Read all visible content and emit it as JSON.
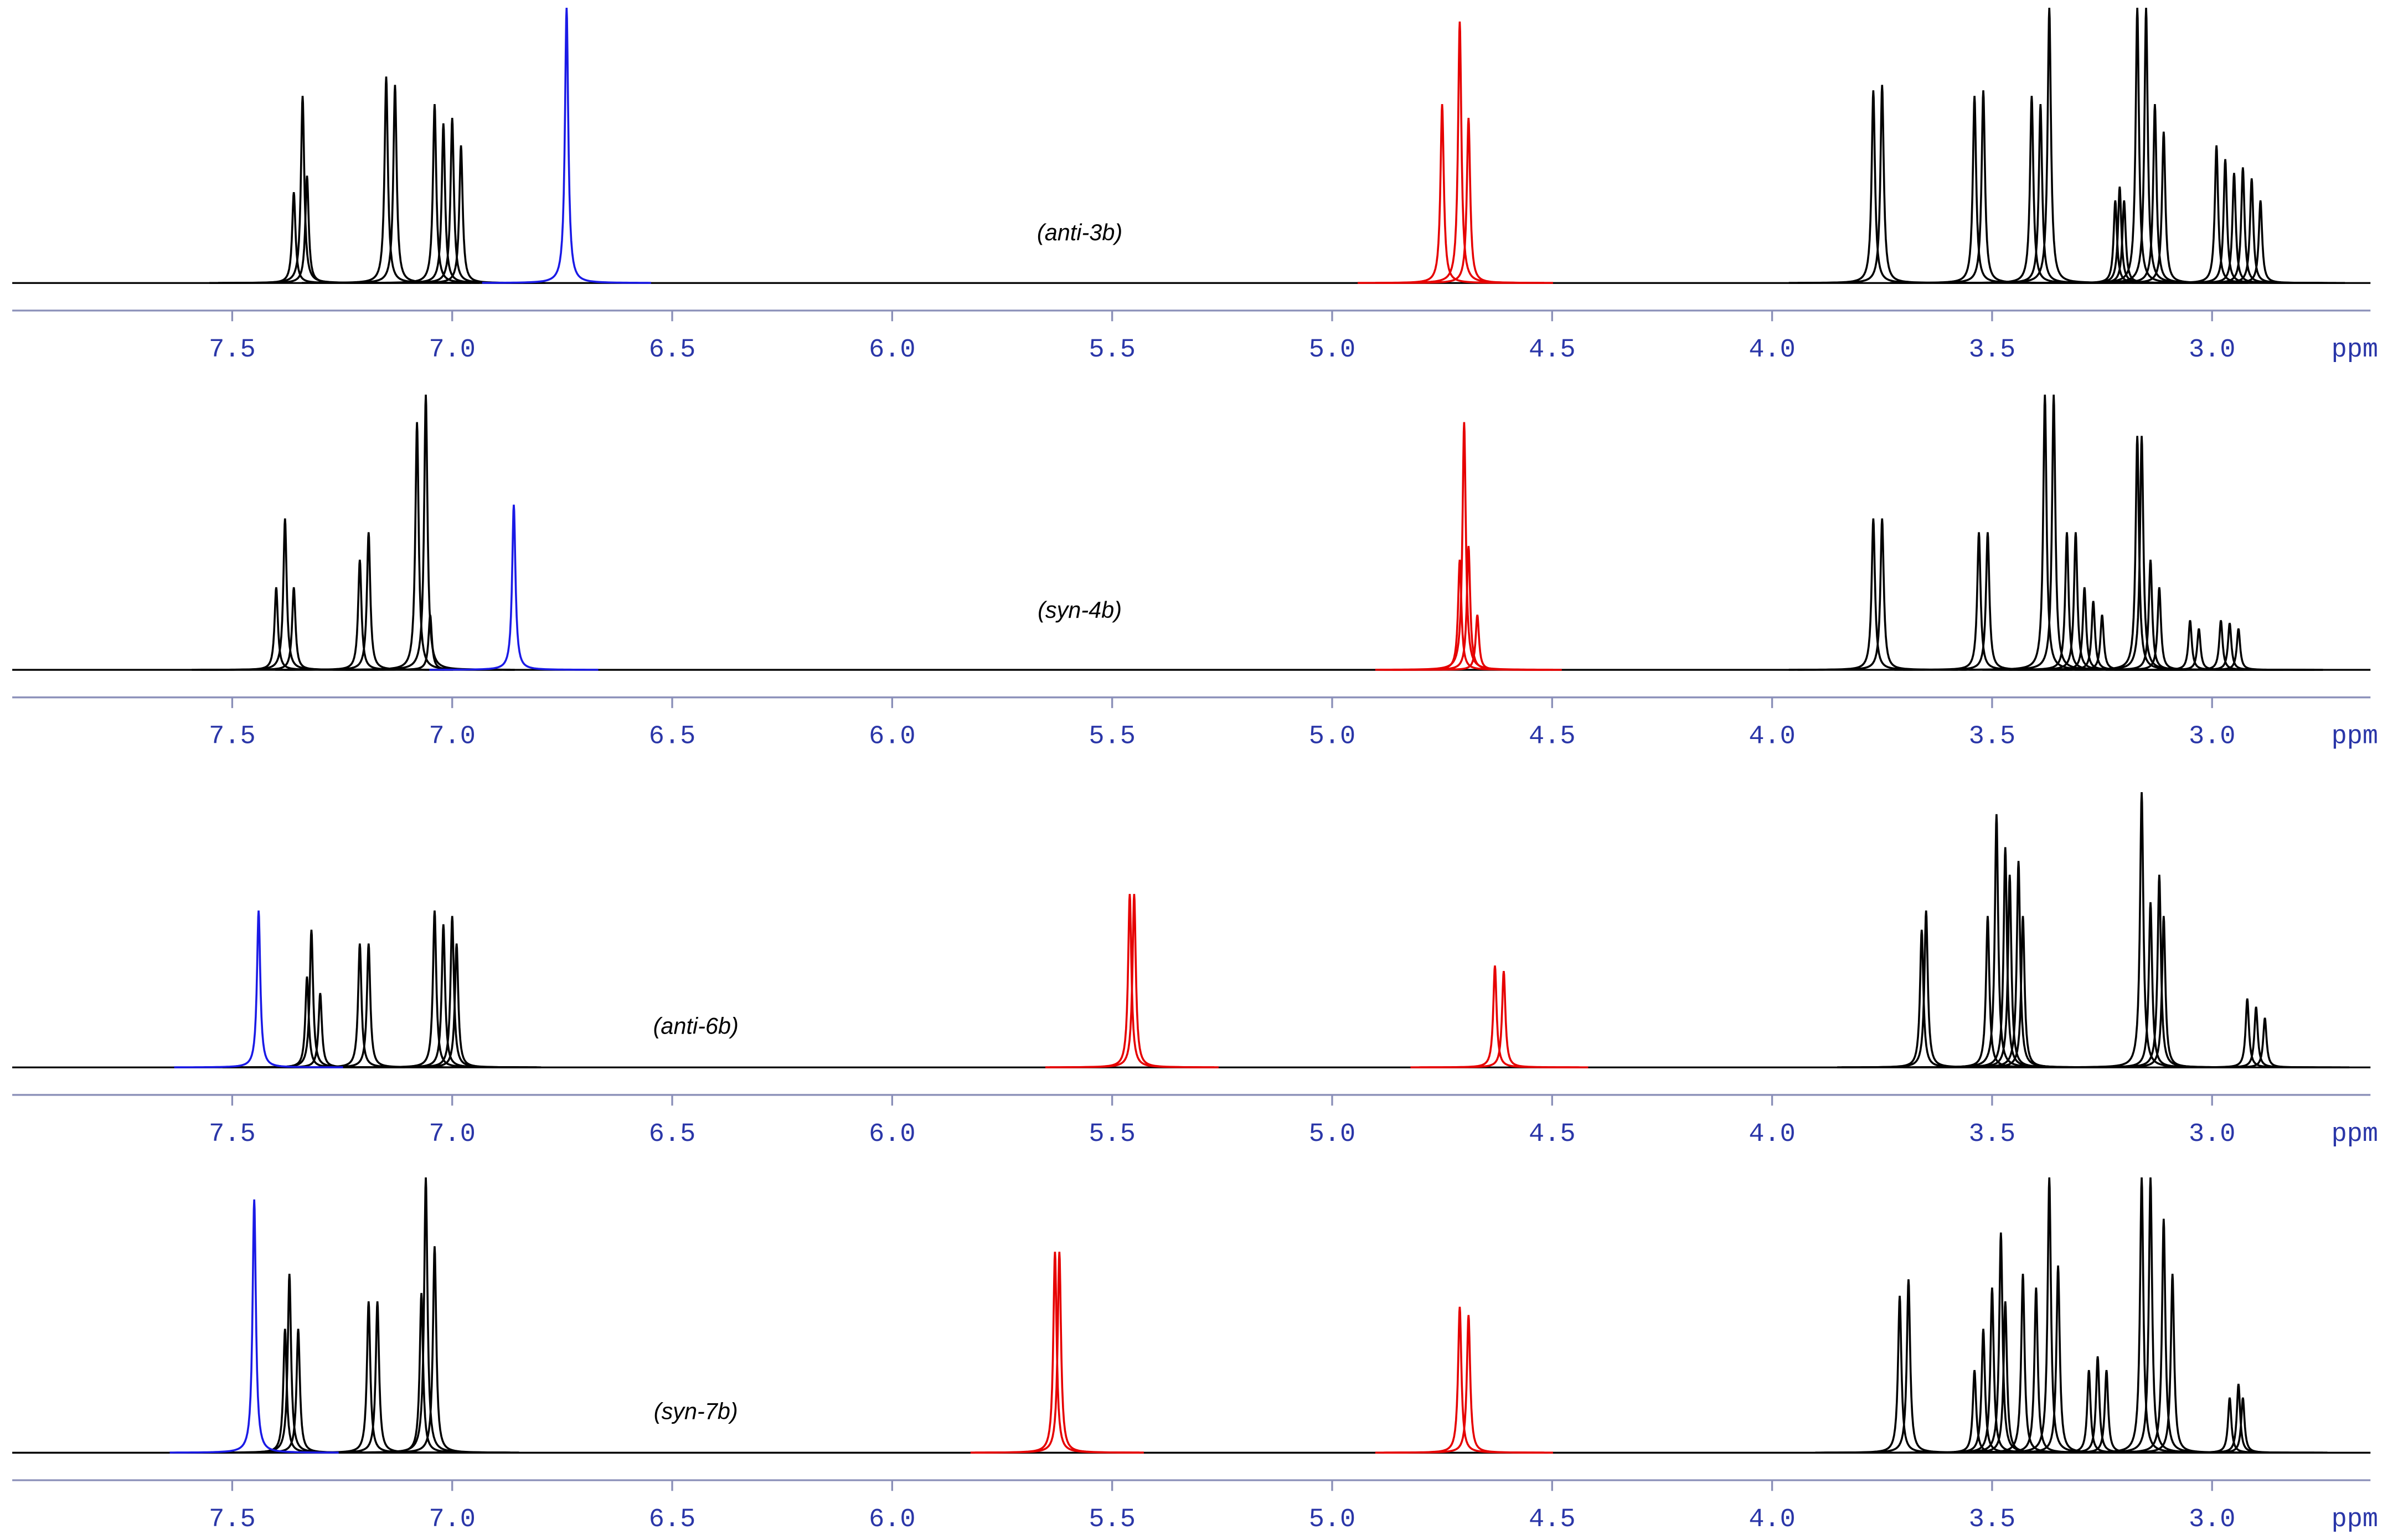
{
  "chart_data": [
    {
      "type": "spectrum",
      "label": "(anti-3b)",
      "xlabel": "ppm",
      "xlim": [
        8.0,
        2.64
      ],
      "ylim": [
        0,
        1
      ],
      "xticks": [
        7.5,
        {
          "value": 7,
          "label": "7.0"
        },
        6.5,
        {
          "value": 6,
          "label": "6.0"
        },
        5.5,
        {
          "value": 5,
          "label": "5.0"
        },
        4.5,
        {
          "value": 4,
          "label": "4.0"
        },
        3.5,
        {
          "value": 3,
          "label": "3.0"
        }
      ],
      "series": [
        {
          "color": "#000000",
          "x": [
            7.36,
            7.34,
            7.33,
            7.15,
            7.13,
            7.04,
            7.02,
            7.0,
            6.98,
            3.77,
            3.75,
            3.54,
            3.52,
            3.41,
            3.39,
            3.37,
            3.22,
            3.21,
            3.2,
            3.17,
            3.15,
            3.13,
            3.11,
            2.99,
            2.97,
            2.95,
            2.93,
            2.91,
            2.89
          ],
          "values": [
            0.33,
            0.68,
            0.39,
            0.75,
            0.72,
            0.65,
            0.58,
            0.6,
            0.5,
            0.7,
            0.72,
            0.68,
            0.7,
            0.68,
            0.65,
            1.0,
            0.3,
            0.35,
            0.3,
            1.0,
            1.0,
            0.65,
            0.55,
            0.5,
            0.45,
            0.4,
            0.42,
            0.38,
            0.3
          ]
        },
        {
          "color": "#1a1ae6",
          "x": [
            6.74
          ],
          "values": [
            1.0
          ]
        },
        {
          "color": "#e60000",
          "x": [
            4.75,
            4.71,
            4.69
          ],
          "values": [
            0.65,
            0.95,
            0.6
          ]
        }
      ]
    },
    {
      "type": "spectrum",
      "label": "(syn-4b)",
      "xlabel": "ppm",
      "xlim": [
        8.0,
        2.64
      ],
      "ylim": [
        0,
        1
      ],
      "xticks": [
        7.5,
        {
          "value": 7,
          "label": "7.0"
        },
        6.5,
        {
          "value": 6,
          "label": "6.0"
        },
        5.5,
        {
          "value": 5,
          "label": "5.0"
        },
        4.5,
        {
          "value": 4,
          "label": "4.0"
        },
        3.5,
        {
          "value": 3,
          "label": "3.0"
        }
      ],
      "series": [
        {
          "color": "#000000",
          "x": [
            7.4,
            7.38,
            7.36,
            7.21,
            7.19,
            7.08,
            7.06,
            7.05,
            3.77,
            3.75,
            3.53,
            3.51,
            3.38,
            3.36,
            3.33,
            3.31,
            3.29,
            3.27,
            3.25,
            3.17,
            3.16,
            3.14,
            3.12,
            3.05,
            3.03,
            2.98,
            2.96,
            2.94
          ],
          "values": [
            0.3,
            0.55,
            0.3,
            0.4,
            0.5,
            0.9,
            1.0,
            0.2,
            0.55,
            0.55,
            0.5,
            0.5,
            1.0,
            1.0,
            0.5,
            0.5,
            0.3,
            0.25,
            0.2,
            0.85,
            0.85,
            0.4,
            0.3,
            0.18,
            0.15,
            0.18,
            0.17,
            0.15
          ]
        },
        {
          "color": "#1a1ae6",
          "x": [
            6.86
          ],
          "values": [
            0.6
          ]
        },
        {
          "color": "#e60000",
          "x": [
            4.71,
            4.7,
            4.69,
            4.67
          ],
          "values": [
            0.4,
            0.9,
            0.45,
            0.2
          ]
        }
      ]
    },
    {
      "type": "spectrum",
      "label": "(anti-6b)",
      "xlabel": "ppm",
      "xlim": [
        8.0,
        2.64
      ],
      "ylim": [
        0,
        1
      ],
      "xticks": [
        7.5,
        {
          "value": 7,
          "label": "7.0"
        },
        6.5,
        {
          "value": 6,
          "label": "6.0"
        },
        5.5,
        {
          "value": 5,
          "label": "5.0"
        },
        4.5,
        {
          "value": 4,
          "label": "4.0"
        },
        3.5,
        {
          "value": 3,
          "label": "3.0"
        }
      ],
      "series": [
        {
          "color": "#000000",
          "x": [
            7.33,
            7.32,
            7.3,
            7.21,
            7.19,
            7.04,
            7.02,
            7.0,
            6.99,
            3.66,
            3.65,
            3.51,
            3.49,
            3.47,
            3.46,
            3.44,
            3.43,
            3.16,
            3.14,
            3.12,
            3.11,
            2.92,
            2.9,
            2.88
          ],
          "values": [
            0.33,
            0.5,
            0.27,
            0.45,
            0.45,
            0.57,
            0.52,
            0.55,
            0.45,
            0.5,
            0.57,
            0.55,
            0.92,
            0.8,
            0.7,
            0.75,
            0.55,
            1.0,
            0.6,
            0.7,
            0.55,
            0.25,
            0.22,
            0.18
          ]
        },
        {
          "color": "#1a1ae6",
          "x": [
            7.44
          ],
          "values": [
            0.57
          ]
        },
        {
          "color": "#e60000",
          "x": [
            5.46,
            5.45,
            4.63,
            4.61
          ],
          "values": [
            0.63,
            0.63,
            0.37,
            0.35
          ]
        }
      ]
    },
    {
      "type": "spectrum",
      "label": "(syn-7b)",
      "xlabel": "ppm",
      "xlim": [
        8.0,
        2.64
      ],
      "ylim": [
        0,
        1
      ],
      "xticks": [
        7.5,
        {
          "value": 7,
          "label": "7.0"
        },
        6.5,
        {
          "value": 6,
          "label": "6.0"
        },
        5.5,
        {
          "value": 5,
          "label": "5.0"
        },
        4.5,
        {
          "value": 4,
          "label": "4.0"
        },
        3.5,
        {
          "value": 3,
          "label": "3.0"
        }
      ],
      "series": [
        {
          "color": "#000000",
          "x": [
            7.38,
            7.37,
            7.35,
            7.19,
            7.17,
            7.07,
            7.06,
            7.04,
            3.71,
            3.69,
            3.54,
            3.52,
            3.5,
            3.48,
            3.47,
            3.43,
            3.4,
            3.37,
            3.35,
            3.28,
            3.26,
            3.24,
            3.16,
            3.14,
            3.11,
            3.09,
            2.96,
            2.94,
            2.93
          ],
          "values": [
            0.45,
            0.65,
            0.45,
            0.55,
            0.55,
            0.58,
            1.0,
            0.75,
            0.57,
            0.63,
            0.3,
            0.45,
            0.6,
            0.8,
            0.55,
            0.65,
            0.6,
            1.0,
            0.68,
            0.3,
            0.35,
            0.3,
            1.0,
            1.0,
            0.85,
            0.65,
            0.2,
            0.25,
            0.2
          ]
        },
        {
          "color": "#1a1ae6",
          "x": [
            7.45
          ],
          "values": [
            0.92
          ]
        },
        {
          "color": "#e60000",
          "x": [
            5.63,
            5.62,
            4.71,
            4.69
          ],
          "values": [
            0.73,
            0.73,
            0.53,
            0.5
          ]
        }
      ]
    }
  ]
}
